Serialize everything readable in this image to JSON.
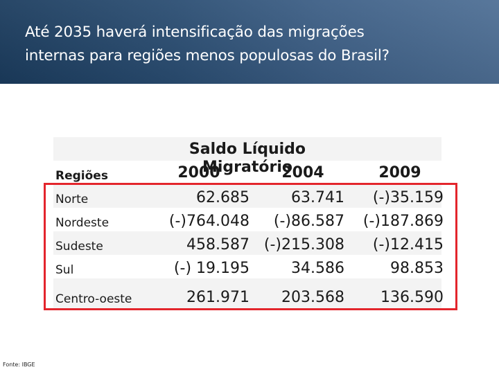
{
  "header": {
    "title_line1": "Até 2035 haverá intensificação das migrações",
    "title_line2": "internas para regiões menos populosas do Brasil?"
  },
  "table": {
    "main_header": "Saldo Líquido Migratório",
    "region_header": "Regiões",
    "years": [
      "2000",
      "2004",
      "2009"
    ],
    "rows": [
      {
        "region": "Norte",
        "values": [
          "62.685",
          "63.741",
          "(-)35.159"
        ]
      },
      {
        "region": "Nordeste",
        "values": [
          "(-)764.048",
          "(-)86.587",
          "(-)187.869"
        ]
      },
      {
        "region": "Sudeste",
        "values": [
          "458.587",
          "(-)215.308",
          "(-)12.415"
        ]
      },
      {
        "region": "Sul",
        "values": [
          "(-) 19.195",
          "34.586",
          "98.853"
        ]
      },
      {
        "region": "Centro-oeste",
        "values": [
          "261.971",
          "203.568",
          "136.590"
        ]
      }
    ],
    "highlight_color": "#e3252c"
  },
  "footer": {
    "source": "Fonte: IBGE"
  }
}
